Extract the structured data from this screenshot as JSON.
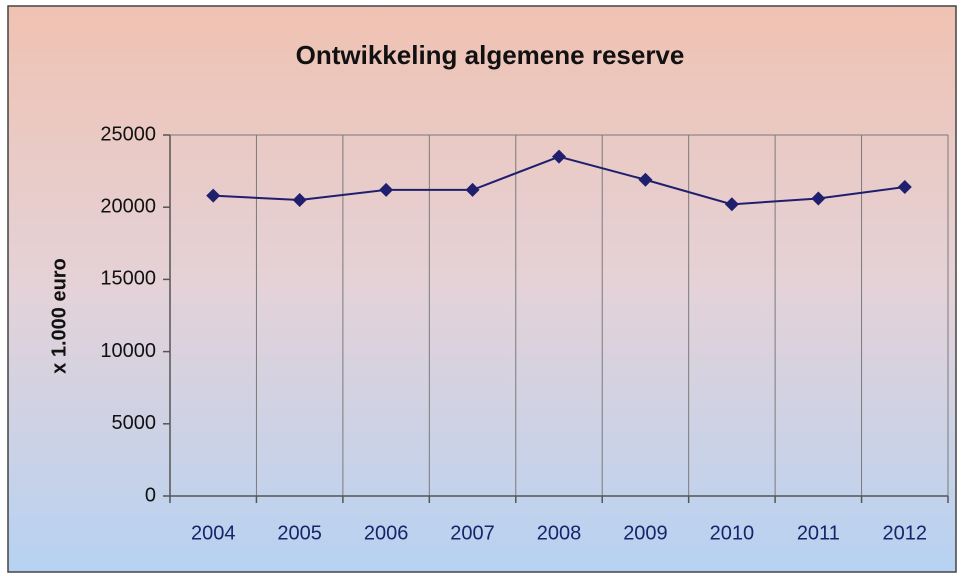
{
  "chart_data": {
    "type": "line",
    "title": "Ontwikkeling algemene reserve",
    "y_label": "x 1.000 euro",
    "categories": [
      "2004",
      "2005",
      "2006",
      "2007",
      "2008",
      "2009",
      "2010",
      "2011",
      "2012"
    ],
    "values": [
      20800,
      20500,
      21200,
      21200,
      23500,
      21900,
      20200,
      20600,
      21400
    ],
    "color": "#1f1f6e",
    "marker": "diamond",
    "ylim": [
      0,
      25000
    ],
    "yticks": [
      0,
      5000,
      10000,
      15000,
      20000,
      25000
    ],
    "grid": true
  }
}
